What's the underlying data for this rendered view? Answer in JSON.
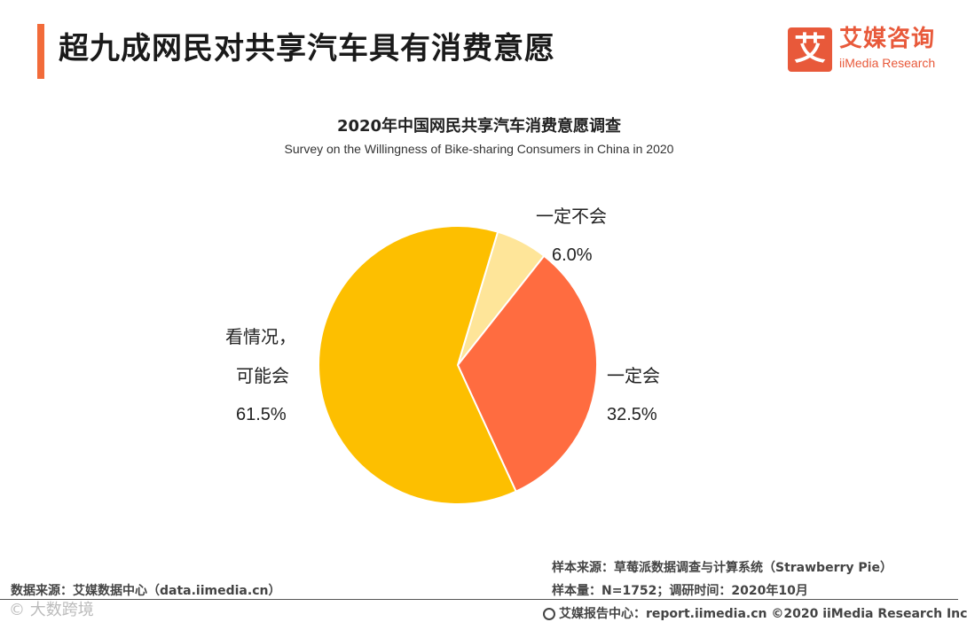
{
  "header": {
    "title": "超九成网民对共享汽车具有消费意愿",
    "accent_color": "#f26b3a"
  },
  "logo": {
    "mark": "艾",
    "name_cn": "艾媒咨询",
    "name_en": "iiMedia Research",
    "color": "#e8593a"
  },
  "chart_data": {
    "type": "pie",
    "title": "2020年中国网民共享汽车消费意愿调查",
    "subtitle": "Survey on the Willingness of Bike-sharing Consumers in China in 2020",
    "slices": [
      {
        "label": "一定不会",
        "value": 6.0,
        "display": "6.0%",
        "color": "#fee599"
      },
      {
        "label": "一定会",
        "value": 32.5,
        "display": "32.5%",
        "color": "#ff6c40"
      },
      {
        "label": "看情况，可能会",
        "label_lines": [
          "看情况，",
          "可能会"
        ],
        "value": 61.5,
        "display": "61.5%",
        "color": "#fdbf00"
      }
    ]
  },
  "footer": {
    "data_source": "数据来源：艾媒数据中心（data.iimedia.cn）",
    "sample_source": "样本来源：草莓派数据调查与计算系统（Strawberry Pie）",
    "sample_size": "样本量：N=1752；调研时间：2020年10月",
    "report_center": "艾媒报告中心：report.iimedia.cn ©2020  iiMedia Research  Inc",
    "watermark": "© 大数跨境"
  }
}
